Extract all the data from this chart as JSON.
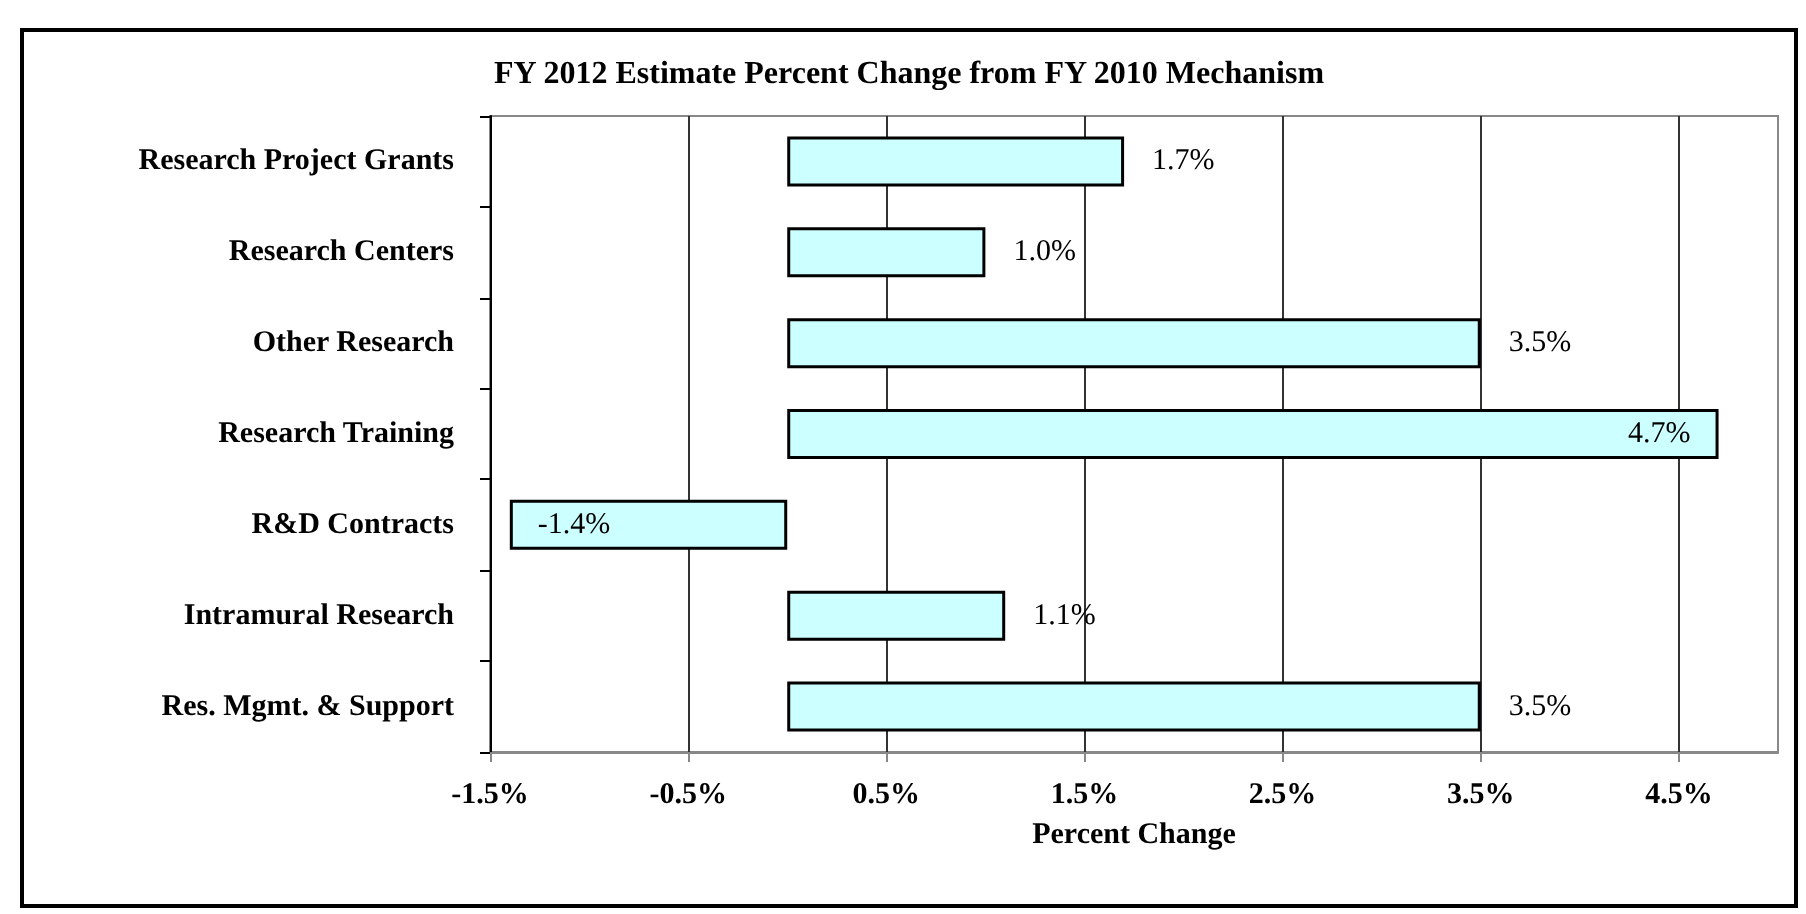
{
  "chart_data": {
    "type": "bar",
    "orientation": "horizontal",
    "title": "FY 2012 Estimate Percent Change from FY 2010 Mechanism",
    "xlabel": "Percent Change",
    "categories": [
      "Research Project Grants",
      "Research Centers",
      "Other Research",
      "Research Training",
      "R&D Contracts",
      "Intramural Research",
      "Res. Mgmt. & Support"
    ],
    "values": [
      1.7,
      1.0,
      3.5,
      4.7,
      -1.4,
      1.1,
      3.5
    ],
    "value_labels": [
      "1.7%",
      "1.0%",
      "3.5%",
      "4.7%",
      "-1.4%",
      "1.1%",
      "3.5%"
    ],
    "color": "#ccffff",
    "xlim": [
      -1.5,
      5.0
    ],
    "xticks": [
      {
        "value": -1.5,
        "label": "-1.5%"
      },
      {
        "value": -0.5,
        "label": "-0.5%"
      },
      {
        "value": 0.5,
        "label": "0.5%"
      },
      {
        "value": 1.5,
        "label": "1.5%"
      },
      {
        "value": 2.5,
        "label": "2.5%"
      },
      {
        "value": 3.5,
        "label": "3.5%"
      },
      {
        "value": 4.5,
        "label": "4.5%"
      }
    ],
    "grid": "x"
  }
}
